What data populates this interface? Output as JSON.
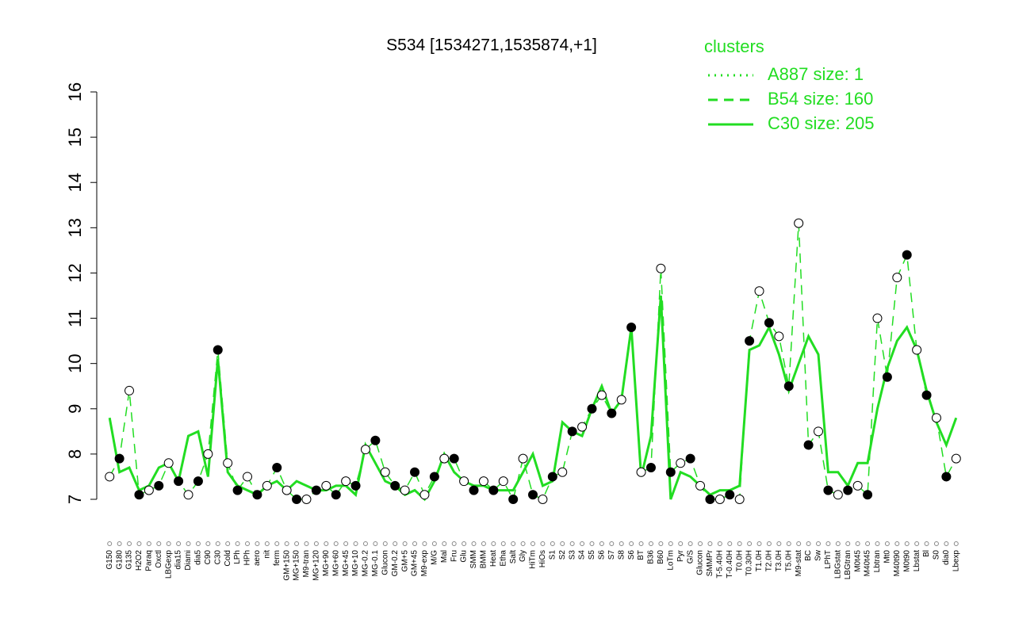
{
  "chart_data": {
    "type": "line",
    "title": "S534 [1534271,1535874,+1]",
    "legend_title": "clusters",
    "categories": [
      "G150",
      "G180",
      "G135",
      "H2O2",
      "Paraq",
      "Oxctl",
      "LBGexp",
      "dia15",
      "Diami",
      "dia5",
      "C90",
      "C30",
      "Cold",
      "LPh",
      "HPh",
      "aero",
      "nit",
      "ferm",
      "GM+150",
      "MG+150",
      "M9-tran",
      "MG+120",
      "MG+90",
      "MG+60",
      "MG+45",
      "MG+10",
      "MG-0.2",
      "MG-0.1",
      "Glucon",
      "GM-0.2",
      "GM+5",
      "GM+45",
      "M9-exp",
      "M/G",
      "Mal",
      "Fru",
      "Glu",
      "SMM",
      "BMM",
      "Heat",
      "Etha",
      "Salt",
      "Gly",
      "HiTm",
      "HiOs",
      "S1",
      "S2",
      "S3",
      "S4",
      "S5",
      "S6",
      "S7",
      "S8",
      "S6",
      "BT",
      "B36",
      "B60",
      "LoTm",
      "Pyr",
      "G/S",
      "Glucon",
      "SMMPr",
      "T-5.40H",
      "T-0.40H",
      "T0.0H",
      "T0.30H",
      "T1.0H",
      "T2.0H",
      "T3.0H",
      "T5.0H",
      "M9-stat",
      "BC",
      "Sw",
      "LPhT",
      "LBGstat",
      "LBGtran",
      "M0t45",
      "M40t45",
      "Lbtran",
      "Mt0",
      "M40t90",
      "M0t90",
      "Lbstat",
      "Bl",
      "S0",
      "dia0",
      "Lbexp"
    ],
    "series": [
      {
        "name": "A887 size: 1",
        "color": "#22dd22",
        "dash": "dotted",
        "values": [
          null,
          null,
          null,
          null,
          null,
          null,
          null,
          null,
          null,
          null,
          null,
          null,
          null,
          null,
          null,
          null,
          null,
          null,
          null,
          null,
          null,
          null,
          null,
          null,
          null,
          null,
          null,
          null,
          null,
          null,
          null,
          null,
          null,
          null,
          null,
          null,
          null,
          null,
          null,
          null,
          null,
          null,
          null,
          null,
          null,
          null,
          null,
          null,
          null,
          null,
          null,
          null,
          null,
          null,
          null,
          null,
          null,
          null,
          null,
          null,
          null,
          null,
          null,
          null,
          null,
          null,
          null,
          null,
          null,
          null,
          null,
          null,
          null,
          null,
          null,
          null,
          null,
          null,
          null,
          null,
          null,
          null,
          null,
          null,
          null,
          null,
          null
        ]
      },
      {
        "name": "B54 size: 160",
        "color": "#22dd22",
        "dash": "dashed",
        "markers": true,
        "values": [
          7.5,
          7.9,
          9.4,
          7.1,
          7.2,
          7.3,
          7.8,
          7.4,
          7.1,
          7.4,
          8.0,
          10.3,
          7.8,
          7.2,
          7.5,
          7.1,
          7.3,
          7.7,
          7.2,
          7.0,
          7.0,
          7.2,
          7.3,
          7.1,
          7.4,
          7.3,
          8.1,
          8.3,
          7.6,
          7.3,
          7.2,
          7.6,
          7.1,
          7.5,
          7.9,
          7.9,
          7.4,
          7.2,
          7.4,
          7.2,
          7.4,
          7.0,
          7.9,
          7.1,
          7.0,
          7.5,
          7.6,
          8.5,
          8.6,
          9.0,
          9.3,
          8.9,
          9.2,
          10.8,
          7.6,
          7.7,
          12.1,
          7.6,
          7.8,
          7.9,
          7.3,
          7.0,
          7.0,
          7.1,
          7.0,
          10.5,
          11.6,
          10.9,
          10.6,
          9.5,
          13.1,
          8.2,
          8.5,
          7.2,
          7.1,
          7.2,
          7.3,
          7.1,
          11.0,
          9.7,
          11.9,
          12.4,
          10.3,
          9.3,
          8.8,
          7.5,
          7.9
        ]
      },
      {
        "name": "C30 size: 205",
        "color": "#22dd22",
        "dash": "solid",
        "values": [
          8.8,
          7.6,
          7.7,
          7.2,
          7.3,
          7.7,
          7.8,
          7.4,
          8.4,
          8.5,
          7.5,
          10.1,
          7.6,
          7.3,
          7.2,
          7.1,
          7.3,
          7.4,
          7.2,
          7.4,
          7.3,
          7.2,
          7.2,
          7.3,
          7.3,
          7.1,
          8.2,
          7.8,
          7.4,
          7.3,
          7.1,
          7.2,
          7.0,
          7.4,
          8.0,
          7.6,
          7.4,
          7.3,
          7.3,
          7.2,
          7.2,
          7.2,
          7.6,
          8.0,
          7.3,
          7.4,
          8.7,
          8.5,
          8.4,
          9.0,
          9.5,
          8.9,
          9.2,
          10.8,
          7.5,
          8.4,
          11.5,
          7.0,
          7.6,
          7.5,
          7.3,
          7.1,
          7.2,
          7.2,
          7.3,
          10.3,
          10.4,
          10.8,
          10.2,
          9.4,
          10.0,
          10.6,
          10.2,
          7.6,
          7.6,
          7.3,
          7.8,
          7.8,
          9.0,
          9.9,
          10.5,
          10.8,
          10.3,
          9.4,
          8.7,
          8.2,
          8.8
        ]
      }
    ],
    "ylim": [
      7,
      16
    ],
    "yticks": [
      7,
      8,
      9,
      10,
      11,
      12,
      13,
      14,
      15,
      16
    ]
  }
}
